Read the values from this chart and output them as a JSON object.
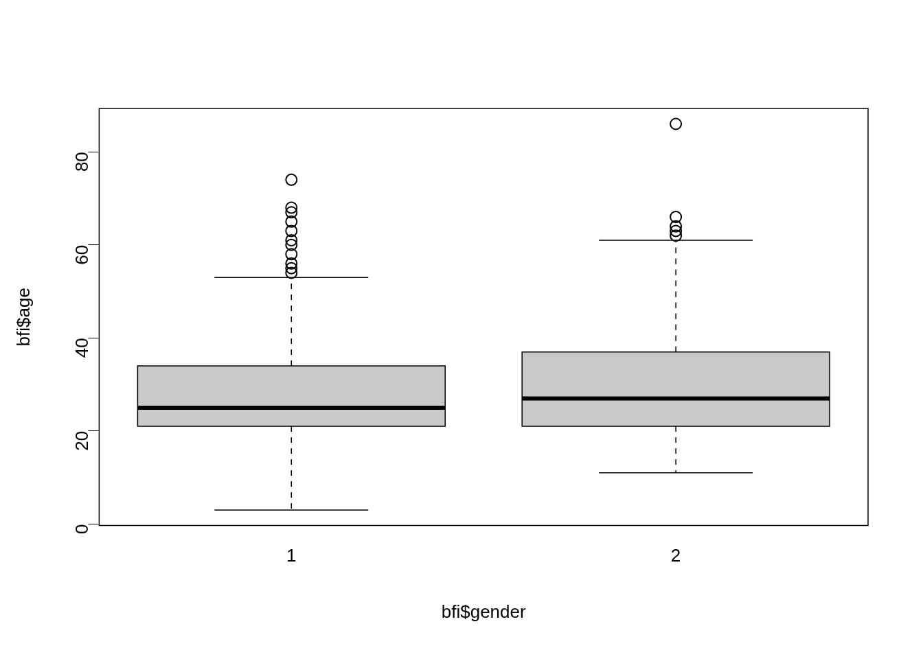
{
  "chart_data": {
    "type": "box",
    "xlabel": "bfi$gender",
    "ylabel": "bfi$age",
    "categories": [
      "1",
      "2"
    ],
    "color": "#c9c9c9",
    "ylim": [
      -0.32,
      89.32
    ],
    "yticks": [
      0,
      20,
      40,
      60,
      80
    ],
    "grid": false,
    "legend": false,
    "marker": "circle",
    "boxes": [
      {
        "low": 3,
        "q1": 21,
        "median": 25,
        "q3": 34,
        "high": 53,
        "outliers": [
          54,
          55,
          56,
          58,
          60,
          61,
          63,
          65,
          67,
          68,
          74
        ]
      },
      {
        "low": 11,
        "q1": 21,
        "median": 27,
        "q3": 37,
        "high": 61,
        "outliers": [
          62,
          63,
          64,
          66,
          86
        ]
      }
    ]
  }
}
